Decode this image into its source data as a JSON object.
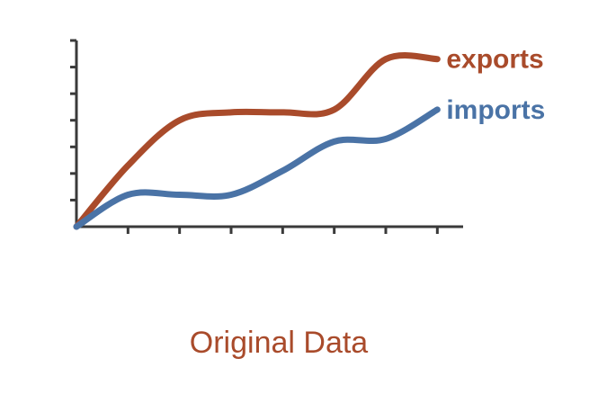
{
  "caption": "Original Data",
  "colors": {
    "exports": "#a94b2b",
    "imports": "#4a73a6",
    "axis": "#3a3a3a"
  },
  "chart_data": {
    "type": "line",
    "title": "",
    "xlabel": "",
    "ylabel": "",
    "x": [
      0,
      1,
      2,
      3,
      4,
      5,
      6,
      7
    ],
    "xlim": [
      0,
      7.5
    ],
    "ylim": [
      0,
      7
    ],
    "x_ticks": 7,
    "y_ticks": 7,
    "grid": false,
    "series": [
      {
        "name": "exports",
        "color": "#a94b2b",
        "label_position": "right-end",
        "values": [
          0,
          2.3,
          4.0,
          4.3,
          4.3,
          4.4,
          6.3,
          6.3
        ]
      },
      {
        "name": "imports",
        "color": "#4a73a6",
        "label_position": "right-end",
        "values": [
          0,
          1.2,
          1.2,
          1.2,
          2.1,
          3.2,
          3.3,
          4.4
        ]
      }
    ]
  }
}
